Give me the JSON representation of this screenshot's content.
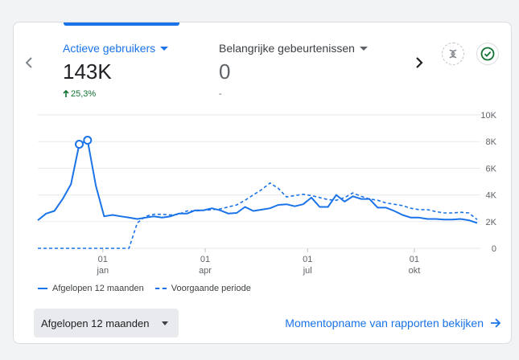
{
  "metrics": {
    "active_users": {
      "label": "Actieve gebruikers",
      "value": "143K",
      "change": "25,3%"
    },
    "key_events": {
      "label": "Belangrijke gebeurtenissen",
      "value": "0",
      "change": "-"
    }
  },
  "icons": {
    "left": "chevron-left-icon",
    "right": "chevron-right-icon",
    "insights": "insights-icon",
    "status": "check-circle-icon"
  },
  "colors": {
    "accent": "#1a73e8",
    "positive": "#137333",
    "text": "#202124",
    "muted": "#5f6368"
  },
  "chart_data": {
    "type": "line",
    "y_ticks": [
      "10K",
      "8K",
      "6K",
      "4K",
      "2K",
      "0"
    ],
    "x_ticks": [
      {
        "day": "01",
        "month": "jan"
      },
      {
        "day": "01",
        "month": "apr"
      },
      {
        "day": "01",
        "month": "jul"
      },
      {
        "day": "01",
        "month": "okt"
      }
    ],
    "ylim": [
      0,
      10000
    ],
    "grid": true,
    "series": [
      {
        "name": "Afgelopen 12 maanden",
        "style": "solid",
        "values": [
          2100,
          2600,
          2800,
          3700,
          4800,
          7800,
          8100,
          4700,
          2400,
          2500,
          2400,
          2300,
          2200,
          2300,
          2400,
          2300,
          2400,
          2600,
          2600,
          2850,
          2850,
          3000,
          2850,
          2600,
          2650,
          3100,
          2800,
          2900,
          3000,
          3250,
          3300,
          3150,
          3300,
          3800,
          3100,
          3100,
          4000,
          3500,
          3900,
          3700,
          3700,
          3050,
          3050,
          2800,
          2500,
          2300,
          2300,
          2200,
          2200,
          2150,
          2150,
          2200,
          2100,
          1900
        ]
      },
      {
        "name": "Voorgaande periode",
        "style": "dashed",
        "values": [
          0,
          0,
          0,
          0,
          0,
          0,
          0,
          0,
          0,
          0,
          0,
          0,
          1900,
          2400,
          2550,
          2550,
          2500,
          2550,
          2800,
          2800,
          2850,
          2900,
          2950,
          3100,
          3250,
          3600,
          4000,
          4400,
          4900,
          4500,
          3850,
          3950,
          4050,
          3950,
          3800,
          3650,
          3600,
          3800,
          4150,
          3900,
          3700,
          3600,
          3400,
          3300,
          3200,
          3000,
          2900,
          2900,
          2750,
          2650,
          2650,
          2700,
          2650,
          2150
        ]
      }
    ]
  },
  "legend": {
    "current": "Afgelopen 12 maanden",
    "previous": "Voorgaande periode"
  },
  "controls": {
    "range": "Afgelopen 12 maanden",
    "snapshot_link": "Momentopname van rapporten bekijken"
  }
}
